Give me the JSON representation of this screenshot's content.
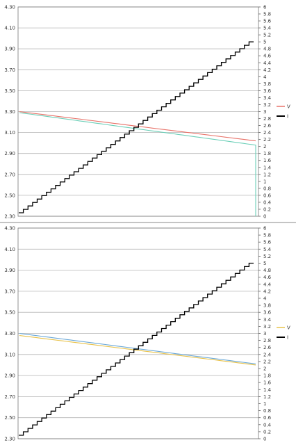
{
  "chart_data": [
    {
      "type": "line",
      "x_points": 56,
      "y_left_ticks": [
        "4.30",
        "4.10",
        "3.90",
        "3.70",
        "3.50",
        "3.30",
        "3.10",
        "2.90",
        "2.70",
        "2.50",
        "2.30"
      ],
      "y_right_ticks": [
        "6",
        "5.8",
        "5.6",
        "5.4",
        "5.2",
        "5",
        "4.8",
        "4.6",
        "4.4",
        "4.2",
        "4",
        "3.8",
        "3.6",
        "3.4",
        "3.2",
        "3",
        "2.8",
        "2.6",
        "2.4",
        "2.2",
        "2",
        "1.8",
        "1.6",
        "1.4",
        "1.2",
        "1",
        "0.8",
        "0.6",
        "0.4",
        "0.2",
        "0"
      ],
      "ylim_left": [
        2.3,
        4.3
      ],
      "ylim_right": [
        0,
        6
      ],
      "grid": true,
      "legend_position": "right",
      "legend": [
        "V",
        "I"
      ],
      "series": [
        {
          "name": "V",
          "axis": "left",
          "color": "#e8736a",
          "start": 3.3,
          "end": 3.02,
          "drop_at_end": false
        },
        {
          "axis": "left",
          "color": "#6ccfb8",
          "start": 3.29,
          "end": 2.98,
          "drop_at_end": true
        },
        {
          "name": "I",
          "axis": "right",
          "color": "#000000",
          "type": "step",
          "start": 0.1,
          "end": 5.0,
          "steps": 50
        }
      ]
    },
    {
      "type": "line",
      "x_points": 56,
      "y_left_ticks": [
        "4.30",
        "4.10",
        "3.90",
        "3.70",
        "3.50",
        "3.30",
        "3.10",
        "2.90",
        "2.70",
        "2.50",
        "2.30"
      ],
      "y_right_ticks": [
        "6",
        "5.8",
        "5.6",
        "5.4",
        "5.2",
        "5",
        "4.8",
        "4.6",
        "4.4",
        "4.2",
        "4",
        "3.8",
        "3.6",
        "3.4",
        "3.2",
        "3",
        "2.8",
        "2.6",
        "2.4",
        "2.2",
        "2",
        "1.8",
        "1.6",
        "1.4",
        "1.2",
        "1",
        "0.8",
        "0.6",
        "0.4",
        "0.2",
        "0"
      ],
      "ylim_left": [
        2.3,
        4.3
      ],
      "ylim_right": [
        0,
        6
      ],
      "grid": true,
      "legend_position": "right",
      "legend": [
        "V",
        "I"
      ],
      "series": [
        {
          "name": "V",
          "axis": "left",
          "color": "#e8c24a",
          "start": 3.28,
          "end": 3.0,
          "drop_at_end": false
        },
        {
          "axis": "left",
          "color": "#6aa8d8",
          "start": 3.3,
          "end": 3.01,
          "drop_at_end": false
        },
        {
          "name": "I",
          "axis": "right",
          "color": "#000000",
          "type": "step",
          "start": 0.1,
          "end": 5.0,
          "steps": 50
        }
      ]
    }
  ]
}
